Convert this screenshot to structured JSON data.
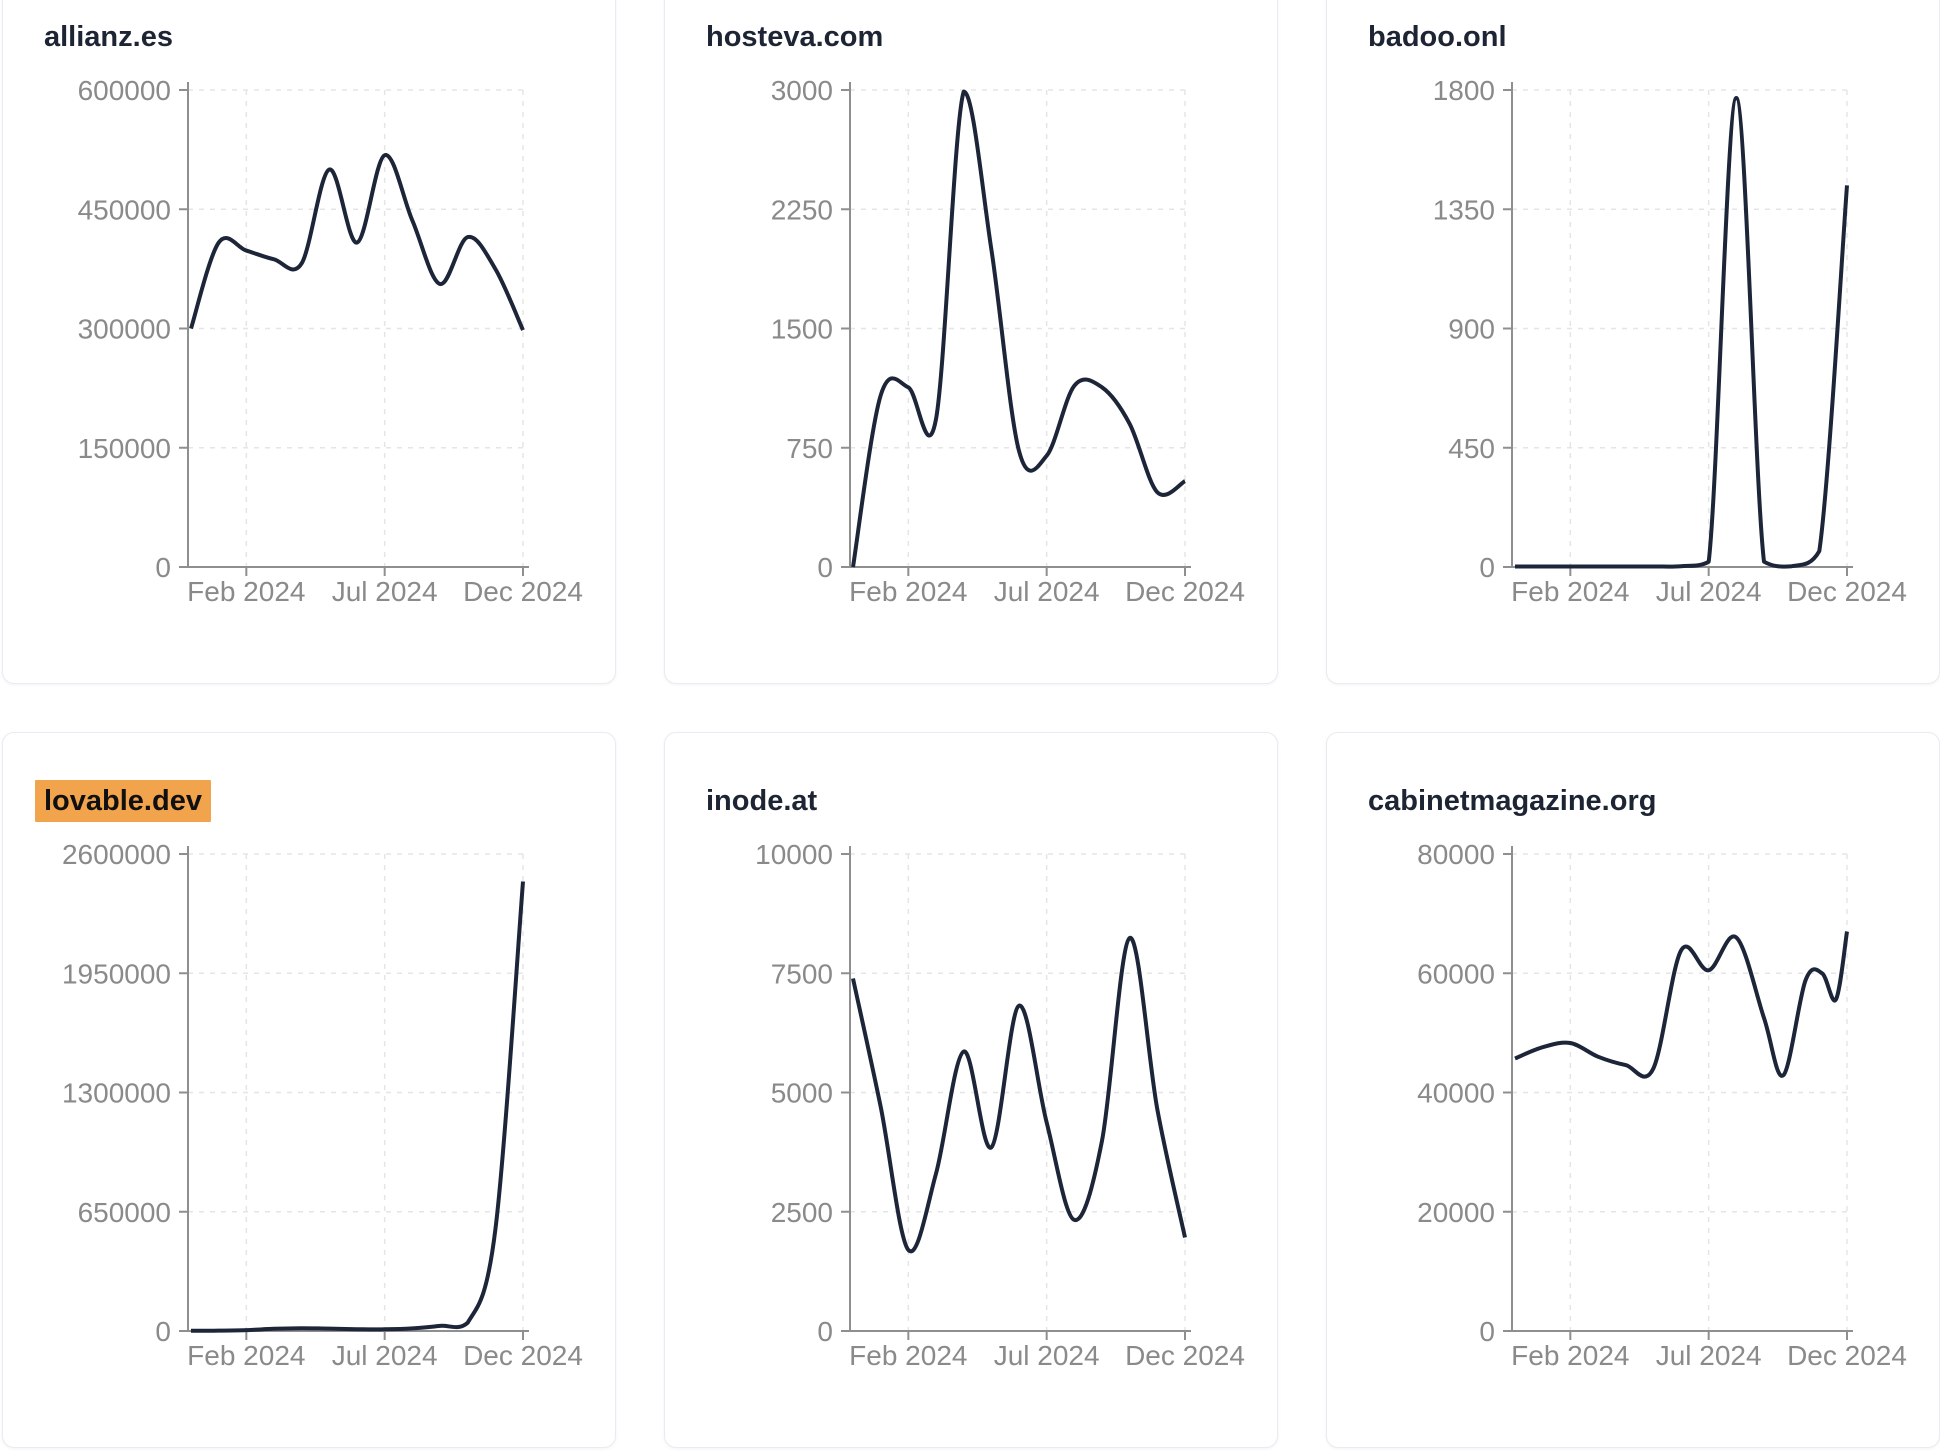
{
  "page": {
    "background_color": "#ffffff",
    "card_border_color": "#e8ebf1",
    "title_color": "#1d2433",
    "axis_color": "#8f8f8f",
    "tick_label_color": "#8a8a8a",
    "gridline_color": "#e5e5e7",
    "line_color": "#1d2538",
    "highlight_color": "#f2a44d"
  },
  "chart_data": [
    {
      "type": "line",
      "title": "allianz.es",
      "highlighted": false,
      "x_unit": "months since Dec 2023 (0 = Dec 2023, 12 = Dec 2024)",
      "x_tick_labels": [
        "Feb 2024",
        "Jul 2024",
        "Dec 2024"
      ],
      "x_tick_positions": [
        2,
        7,
        12
      ],
      "xlim": [
        0,
        12
      ],
      "ylim": [
        0,
        600000
      ],
      "y_ticks": [
        0,
        150000,
        300000,
        450000,
        600000
      ],
      "grid": "dashed",
      "legend": "none",
      "points": [
        [
          0,
          300000
        ],
        [
          1,
          408000
        ],
        [
          2,
          398000
        ],
        [
          3,
          387000
        ],
        [
          4,
          382000
        ],
        [
          5,
          500000
        ],
        [
          6,
          408000
        ],
        [
          7,
          518000
        ],
        [
          8,
          436000
        ],
        [
          9,
          356000
        ],
        [
          10,
          415000
        ],
        [
          11,
          375000
        ],
        [
          12,
          298000
        ]
      ]
    },
    {
      "type": "line",
      "title": "hosteva.com",
      "highlighted": false,
      "x_unit": "months since Dec 2023 (0 = Dec 2023, 12 = Dec 2024)",
      "x_tick_labels": [
        "Feb 2024",
        "Jul 2024",
        "Dec 2024"
      ],
      "x_tick_positions": [
        2,
        7,
        12
      ],
      "xlim": [
        0,
        12
      ],
      "ylim": [
        0,
        3000
      ],
      "y_ticks": [
        0,
        750,
        1500,
        2250,
        3000
      ],
      "grid": "dashed",
      "legend": "none",
      "points": [
        [
          0,
          0
        ],
        [
          1,
          1080
        ],
        [
          2,
          1130
        ],
        [
          3,
          930
        ],
        [
          4,
          2990
        ],
        [
          5,
          2000
        ],
        [
          6,
          730
        ],
        [
          7,
          700
        ],
        [
          8,
          1140
        ],
        [
          9,
          1130
        ],
        [
          10,
          900
        ],
        [
          11,
          470
        ],
        [
          12,
          540
        ]
      ]
    },
    {
      "type": "line",
      "title": "badoo.onl",
      "highlighted": false,
      "x_unit": "months since Dec 2023 (0 = Dec 2023, 12 = Dec 2024)",
      "x_tick_labels": [
        "Feb 2024",
        "Jul 2024",
        "Dec 2024"
      ],
      "x_tick_positions": [
        2,
        7,
        12
      ],
      "xlim": [
        0,
        12
      ],
      "ylim": [
        0,
        1800
      ],
      "y_ticks": [
        0,
        450,
        900,
        1350,
        1800
      ],
      "grid": "dashed",
      "legend": "none",
      "points": [
        [
          0,
          2
        ],
        [
          1,
          2
        ],
        [
          2,
          2
        ],
        [
          3,
          2
        ],
        [
          4,
          2
        ],
        [
          5,
          2
        ],
        [
          6,
          3
        ],
        [
          7,
          20
        ],
        [
          8,
          1770
        ],
        [
          9,
          20
        ],
        [
          10,
          3
        ],
        [
          11,
          60
        ],
        [
          12,
          1440
        ]
      ]
    },
    {
      "type": "line",
      "title": "lovable.dev",
      "highlighted": true,
      "x_unit": "months since Dec 2023 (0 = Dec 2023, 12 = Dec 2024)",
      "x_tick_labels": [
        "Feb 2024",
        "Jul 2024",
        "Dec 2024"
      ],
      "x_tick_positions": [
        2,
        7,
        12
      ],
      "xlim": [
        0,
        12
      ],
      "ylim": [
        0,
        2600000
      ],
      "y_ticks": [
        0,
        650000,
        1300000,
        1950000,
        2600000
      ],
      "grid": "dashed",
      "legend": "none",
      "points": [
        [
          0,
          1000
        ],
        [
          1,
          2000
        ],
        [
          2,
          5000
        ],
        [
          3,
          12000
        ],
        [
          4,
          15000
        ],
        [
          5,
          13000
        ],
        [
          6,
          10000
        ],
        [
          7,
          9000
        ],
        [
          8,
          14000
        ],
        [
          9,
          28000
        ],
        [
          10,
          45000
        ],
        [
          11,
          550000
        ],
        [
          12,
          2450000
        ]
      ]
    },
    {
      "type": "line",
      "title": "inode.at",
      "highlighted": false,
      "x_unit": "months since Dec 2023 (0 = Dec 2023, 12 = Dec 2024)",
      "x_tick_labels": [
        "Feb 2024",
        "Jul 2024",
        "Dec 2024"
      ],
      "x_tick_positions": [
        2,
        7,
        12
      ],
      "xlim": [
        0,
        12
      ],
      "ylim": [
        0,
        10000
      ],
      "y_ticks": [
        0,
        2500,
        5000,
        7500,
        10000
      ],
      "grid": "dashed",
      "legend": "none",
      "points": [
        [
          0,
          7390
        ],
        [
          1,
          4700
        ],
        [
          2,
          1700
        ],
        [
          3,
          3300
        ],
        [
          4,
          5860
        ],
        [
          5,
          3850
        ],
        [
          6,
          6820
        ],
        [
          7,
          4370
        ],
        [
          8,
          2330
        ],
        [
          9,
          3990
        ],
        [
          10,
          8240
        ],
        [
          11,
          4650
        ],
        [
          12,
          1960
        ]
      ]
    },
    {
      "type": "line",
      "title": "cabinetmagazine.org",
      "highlighted": false,
      "x_unit": "months since Dec 2023 (0 = Dec 2023, 12 = Dec 2024)",
      "x_tick_labels": [
        "Feb 2024",
        "Jul 2024",
        "Dec 2024"
      ],
      "x_tick_positions": [
        2,
        7,
        12
      ],
      "xlim": [
        0,
        12
      ],
      "ylim": [
        0,
        80000
      ],
      "y_ticks": [
        0,
        20000,
        40000,
        60000,
        80000
      ],
      "grid": "dashed",
      "legend": "none",
      "points": [
        [
          0,
          45700
        ],
        [
          1,
          47600
        ],
        [
          2,
          48300
        ],
        [
          3,
          46000
        ],
        [
          4,
          44600
        ],
        [
          5,
          44000
        ],
        [
          6,
          63800
        ],
        [
          7,
          60500
        ],
        [
          8,
          66000
        ],
        [
          9,
          52500
        ],
        [
          9.7,
          42900
        ],
        [
          10.5,
          58800
        ],
        [
          11.1,
          60000
        ],
        [
          11.6,
          55600
        ],
        [
          12,
          67000
        ]
      ]
    }
  ]
}
